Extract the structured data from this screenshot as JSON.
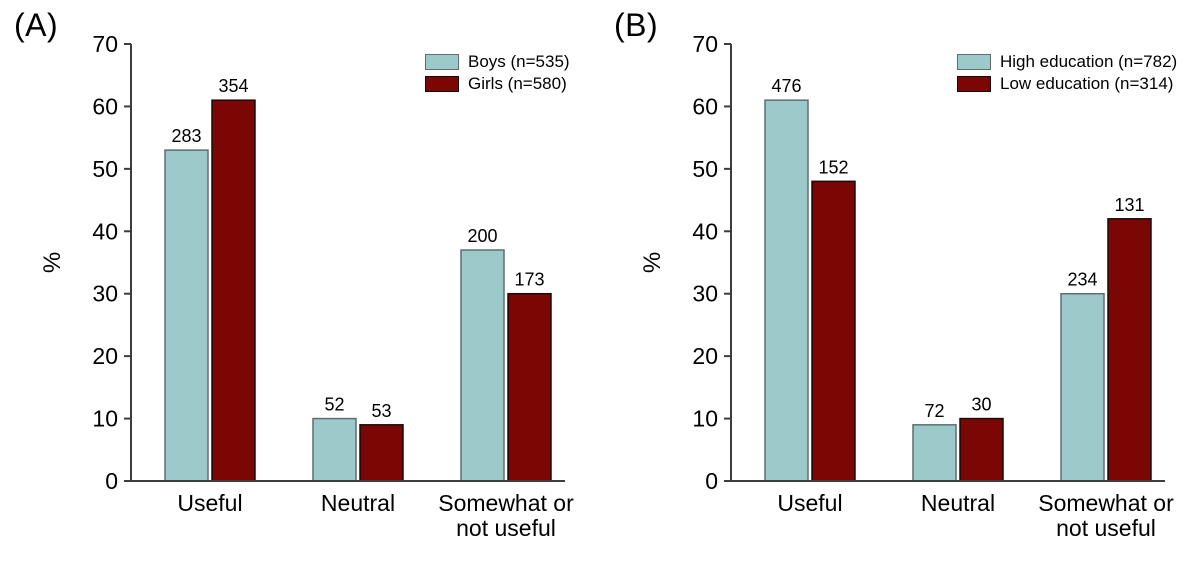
{
  "figure": {
    "background": "#ffffff",
    "axis_color": "#3d3d3d"
  },
  "chart_data": [
    {
      "type": "bar",
      "panel_label": "(A)",
      "title": "",
      "xlabel": "",
      "ylabel": "%",
      "ylim": [
        0,
        70
      ],
      "ytick_interval": 10,
      "grid": false,
      "legend_position": "top-right",
      "categories": [
        "Useful",
        "Neutral",
        "Somewhat or\nnot useful"
      ],
      "series": [
        {
          "name": "Boys (n=535)",
          "fill": "#9CCACA",
          "border": "#5E6E6E",
          "percent_values": [
            53,
            10,
            37
          ],
          "count_labels": [
            283,
            52,
            200
          ]
        },
        {
          "name": "Girls (n=580)",
          "fill": "#7B0705",
          "border": "#1A0A0A",
          "percent_values": [
            61,
            9,
            30
          ],
          "count_labels": [
            354,
            53,
            173
          ]
        }
      ]
    },
    {
      "type": "bar",
      "panel_label": "(B)",
      "title": "",
      "xlabel": "",
      "ylabel": "%",
      "ylim": [
        0,
        70
      ],
      "ytick_interval": 10,
      "grid": false,
      "legend_position": "top-right",
      "categories": [
        "Useful",
        "Neutral",
        "Somewhat or\nnot useful"
      ],
      "series": [
        {
          "name": "High education (n=782)",
          "fill": "#9CCACA",
          "border": "#5E6E6E",
          "percent_values": [
            61,
            9,
            30
          ],
          "count_labels": [
            476,
            72,
            234
          ]
        },
        {
          "name": "Low education (n=314)",
          "fill": "#7B0705",
          "border": "#1A0A0A",
          "percent_values": [
            48,
            10,
            42
          ],
          "count_labels": [
            152,
            30,
            131
          ]
        }
      ]
    }
  ]
}
